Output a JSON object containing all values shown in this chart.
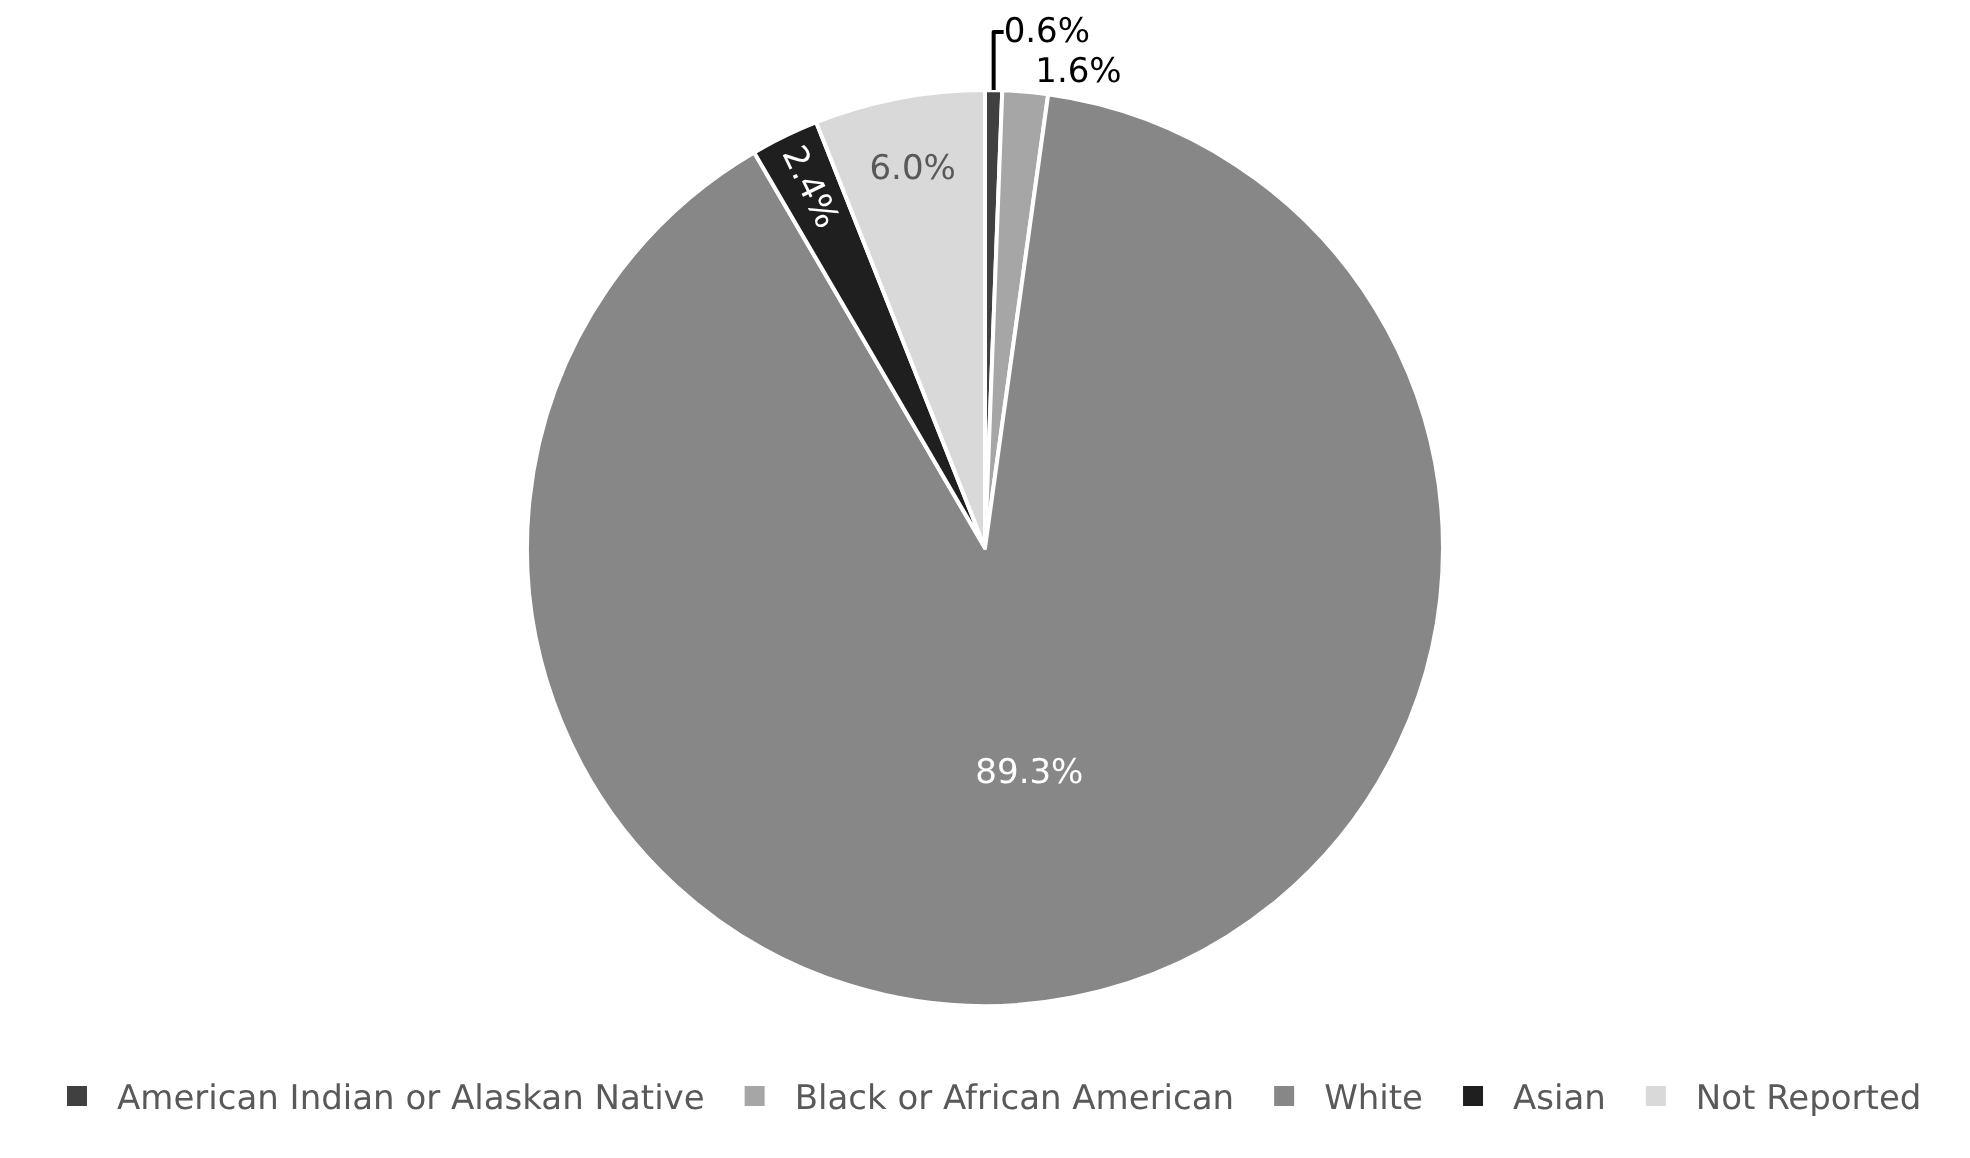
{
  "chart_data": {
    "type": "pie",
    "categories": [
      "American Indian or Alaskan Native",
      "Black or African American",
      "White",
      "Asian",
      "Not Reported"
    ],
    "values": [
      0.6,
      1.6,
      89.3,
      2.4,
      6.0
    ],
    "colors": [
      "#404040",
      "#a6a6a6",
      "#878787",
      "#1f1f1f",
      "#d9d9d9"
    ],
    "value_labels": [
      "0.6%",
      "1.6%",
      "89.3%",
      "2.4%",
      "6.0%"
    ],
    "legend": "bottom"
  }
}
